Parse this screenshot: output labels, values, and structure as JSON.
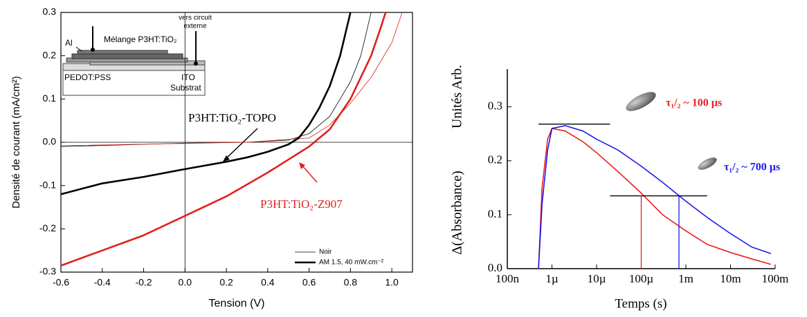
{
  "chart_data": [
    {
      "type": "line",
      "xlabel": "Tension (V)",
      "ylabel": "Densité de courant (mA/cm²)",
      "xlim": [
        -0.6,
        1.1
      ],
      "ylim": [
        -0.3,
        0.3
      ],
      "xticks": [
        -0.6,
        -0.4,
        -0.2,
        {
          "value": 0,
          "label": "0.0"
        },
        0.2,
        0.4,
        0.6,
        0.8,
        {
          "value": 1,
          "label": "1.0"
        }
      ],
      "yticks": [
        -0.3,
        -0.2,
        -0.1,
        {
          "value": 0,
          "label": "0.0"
        },
        0.1,
        0.2,
        0.3
      ],
      "frame": "box",
      "zero_lines": true,
      "legend_position": "lower right",
      "legend": [
        {
          "label": "Noir",
          "width": 0.8
        },
        {
          "label": "AM 1.5, 40 mW.cm⁻²",
          "width": 2.6
        }
      ],
      "series": [
        {
          "color": "#000000",
          "width": 0.8,
          "x": [
            -0.6,
            0,
            0.3,
            0.5,
            0.6,
            0.7,
            0.8,
            0.85,
            0.9
          ],
          "values": [
            -0.01,
            -0.002,
            0,
            0.005,
            0.02,
            0.06,
            0.14,
            0.2,
            0.3
          ]
        },
        {
          "color": "#e0201b",
          "width": 0.8,
          "x": [
            -0.6,
            0.3,
            0.6,
            0.7,
            0.8,
            0.9,
            1.0,
            1.05
          ],
          "values": [
            -0.008,
            0,
            0.01,
            0.04,
            0.09,
            0.15,
            0.23,
            0.3
          ]
        },
        {
          "color": "#000000",
          "width": 2.6,
          "x": [
            -0.6,
            -0.4,
            -0.2,
            0,
            0.2,
            0.3,
            0.4,
            0.5,
            0.55,
            0.6,
            0.65,
            0.7,
            0.75,
            0.8
          ],
          "values": [
            -0.12,
            -0.095,
            -0.08,
            -0.062,
            -0.045,
            -0.035,
            -0.022,
            -0.005,
            0.01,
            0.04,
            0.08,
            0.13,
            0.2,
            0.3
          ]
        },
        {
          "color": "#e0201b",
          "width": 2.6,
          "x": [
            -0.6,
            -0.4,
            -0.2,
            0,
            0.2,
            0.4,
            0.5,
            0.6,
            0.65,
            0.7,
            0.8,
            0.9,
            0.95,
            0.97
          ],
          "values": [
            -0.285,
            -0.25,
            -0.215,
            -0.17,
            -0.125,
            -0.07,
            -0.04,
            -0.01,
            0.01,
            0.03,
            0.1,
            0.2,
            0.27,
            0.3
          ]
        }
      ],
      "annotations": [
        {
          "text": "P3HT:TiO₂-TOPO",
          "color": "#000000"
        },
        {
          "text": "P3HT:TiO₂-Z907",
          "color": "#e0201b"
        }
      ],
      "inset": {
        "labels": [
          "Al",
          "Mélange P3HT:TiO₂",
          "vers circuit",
          "externe",
          "PEDOT:PSS",
          "ITO",
          "Substrat"
        ]
      }
    },
    {
      "type": "line",
      "xscale": "log",
      "xlabel": "Temps (s)",
      "ylabel": [
        "Δ(Absorbance)",
        "Unités Arb."
      ],
      "xlim": [
        1e-07,
        0.1
      ],
      "ylim": [
        0,
        0.37
      ],
      "xticks": [
        {
          "value": 1e-07,
          "label": "100n"
        },
        {
          "value": 1e-06,
          "label": "1µ"
        },
        {
          "value": 1e-05,
          "label": "10µ"
        },
        {
          "value": 0.0001,
          "label": "100µ"
        },
        {
          "value": 0.001,
          "label": "1m"
        },
        {
          "value": 0.01,
          "label": "10m"
        },
        {
          "value": 0.1,
          "label": "100m"
        }
      ],
      "yticks": [
        {
          "value": 0,
          "label": "0.0"
        },
        0.1,
        0.2,
        0.3
      ],
      "frame": "axes",
      "series": [
        {
          "color": "#ee1c1c",
          "width": 1.6,
          "x": [
            5e-07,
            6e-07,
            8e-07,
            1e-06,
            2e-06,
            5e-06,
            1e-05,
            3e-05,
            0.0001,
            0.0003,
            0.001,
            0.003,
            0.01,
            0.03,
            0.08
          ],
          "values": [
            0,
            0.15,
            0.24,
            0.26,
            0.255,
            0.235,
            0.215,
            0.18,
            0.14,
            0.1,
            0.07,
            0.045,
            0.03,
            0.018,
            0.008
          ]
        },
        {
          "color": "#1a1aee",
          "width": 1.6,
          "x": [
            5e-07,
            6e-07,
            8e-07,
            1e-06,
            2e-06,
            5e-06,
            1e-05,
            3e-05,
            0.0001,
            0.0003,
            0.001,
            0.003,
            0.01,
            0.03,
            0.08
          ],
          "values": [
            0,
            0.12,
            0.22,
            0.26,
            0.265,
            0.255,
            0.24,
            0.22,
            0.19,
            0.16,
            0.125,
            0.095,
            0.065,
            0.04,
            0.028
          ]
        }
      ],
      "hlines": [
        {
          "y": 0.268,
          "x": [
            5e-07,
            2e-05
          ],
          "color": "#000000"
        },
        {
          "y": 0.135,
          "x": [
            2e-05,
            0.003
          ],
          "color": "#000000"
        }
      ],
      "vlines": [
        {
          "x": 0.0001,
          "y": [
            0,
            0.135
          ],
          "color": "#ee1c1c"
        },
        {
          "x": 0.0007,
          "y": [
            0,
            0.135
          ],
          "color": "#1a1aee"
        }
      ],
      "annotations": [
        {
          "text": "τ₁/₂ ~ 100 µs",
          "color": "#ee1c1c"
        },
        {
          "text": "τ₁/₂ ~ 700 µs",
          "color": "#1a1aee"
        }
      ]
    }
  ]
}
